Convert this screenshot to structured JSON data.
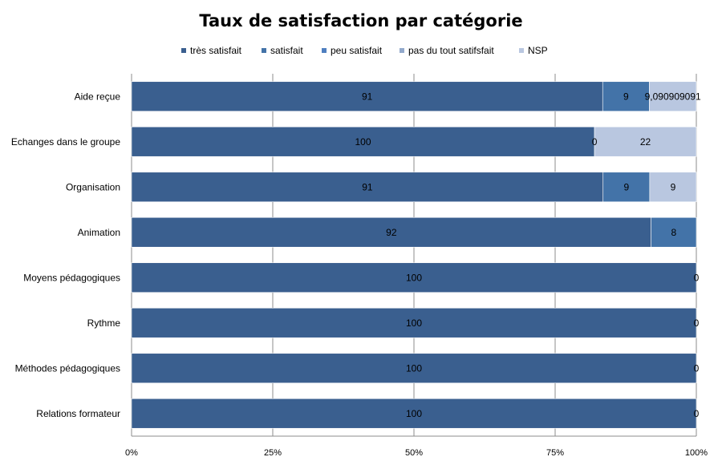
{
  "chart_data": {
    "type": "bar",
    "orientation": "horizontal",
    "stacked": "percent",
    "title": "Taux de satisfaction par catégorie",
    "legend_position": "top",
    "grid": true,
    "x_ticks": [
      "0%",
      "25%",
      "50%",
      "75%",
      "100%"
    ],
    "categories": [
      "Aide reçue",
      "Echanges dans le groupe",
      "Organisation",
      "Animation",
      "Moyens pédagogiques",
      "Rythme",
      "Méthodes pédagogiques",
      "Relations formateur"
    ],
    "series": [
      {
        "name": "très satisfait",
        "color": "#3a5f8f",
        "values": [
          91,
          100,
          91,
          92,
          100,
          100,
          100,
          100
        ],
        "labels": [
          "91",
          "100",
          "91",
          "92",
          "100",
          "100",
          "100",
          "100"
        ]
      },
      {
        "name": "satisfait",
        "color": "#4373a8",
        "values": [
          9,
          0,
          9,
          8,
          0,
          0,
          0,
          0
        ],
        "labels": [
          "9",
          "0",
          "9",
          "8",
          "0",
          "0",
          "0",
          "0"
        ]
      },
      {
        "name": "peu satisfait",
        "color": "#4f7fc0",
        "values": [
          0,
          0,
          0,
          0,
          0,
          0,
          0,
          0
        ],
        "labels": [
          "",
          "",
          "",
          "",
          "",
          "",
          "",
          ""
        ]
      },
      {
        "name": "pas du tout satifsfait",
        "color": "#92a9cc",
        "values": [
          0,
          0,
          0,
          0,
          0,
          0,
          0,
          0
        ],
        "labels": [
          "",
          "",
          "",
          "",
          "",
          "",
          "",
          ""
        ]
      },
      {
        "name": "NSP",
        "color": "#b9c7e0",
        "values": [
          9.090909091,
          22,
          9,
          0,
          0,
          0,
          0,
          0
        ],
        "labels": [
          "9,090909091",
          "22",
          "9",
          "",
          "",
          "",
          "",
          ""
        ]
      }
    ]
  }
}
